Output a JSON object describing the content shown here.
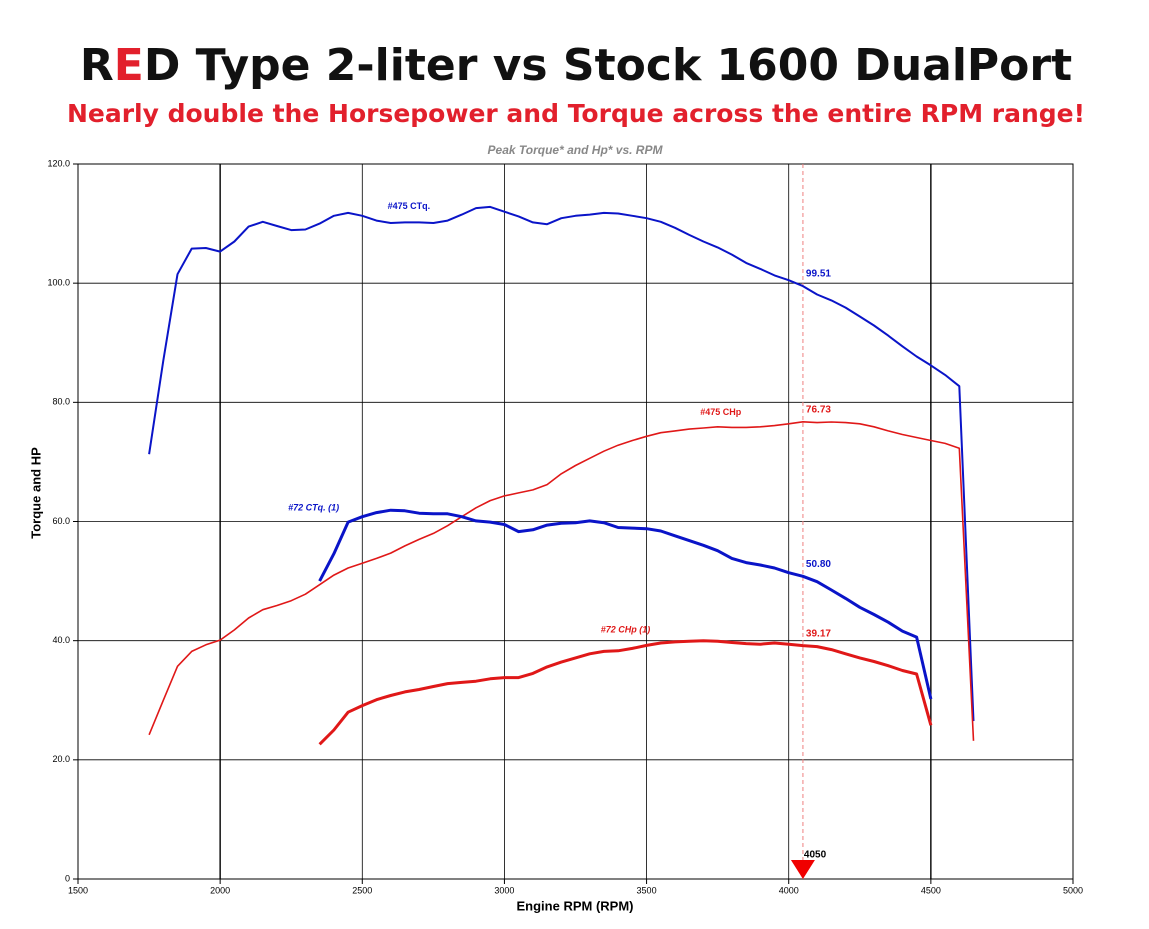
{
  "chart_data": {
    "type": "line",
    "title": "RED Type 2-liter vs Stock 1600 DualPort",
    "subtitle": "Nearly double the Horsepower and Torque across the entire RPM range!",
    "plot_title": "Peak Torque* and Hp* vs. RPM",
    "x_label": "Engine RPM (RPM)",
    "y_label": "Torque and HP",
    "xlim": [
      1500,
      5000
    ],
    "ylim": [
      0,
      120
    ],
    "xticks": [
      1500,
      2000,
      2500,
      3000,
      3500,
      4000,
      4500,
      5000
    ],
    "yticks": [
      0,
      {
        "value": 20,
        "label": "20.0"
      },
      {
        "value": 40,
        "label": "40.0"
      },
      {
        "value": 60,
        "label": "60.0"
      },
      {
        "value": 80,
        "label": "80.0"
      },
      {
        "value": 100,
        "label": "100.0"
      },
      {
        "value": 120,
        "label": "120.0"
      }
    ],
    "grid": true,
    "cursor": {
      "x": 4050
    },
    "series": [
      {
        "name": "#475 CTq.",
        "color": "#0a14c8",
        "x": [
          1750,
          1800,
          1850,
          1900,
          1950,
          2000,
          2050,
          2100,
          2150,
          2200,
          2250,
          2300,
          2350,
          2400,
          2450,
          2500,
          2550,
          2600,
          2650,
          2700,
          2750,
          2800,
          2850,
          2900,
          2950,
          3000,
          3050,
          3100,
          3150,
          3200,
          3250,
          3300,
          3350,
          3400,
          3450,
          3500,
          3550,
          3600,
          3650,
          3700,
          3750,
          3800,
          3850,
          3900,
          3950,
          4000,
          4050,
          4100,
          4150,
          4200,
          4250,
          4300,
          4350,
          4400,
          4450,
          4500,
          4550,
          4600,
          4650
        ],
        "values": [
          71.3,
          87,
          101.5,
          105.8,
          105.9,
          105.3,
          107,
          109.5,
          110.3,
          109.6,
          108.9,
          109,
          110,
          111.3,
          111.8,
          111.3,
          110.5,
          110.1,
          110.2,
          110.2,
          110.1,
          110.5,
          111.5,
          112.6,
          112.8,
          112,
          111.2,
          110.2,
          109.9,
          110.9,
          111.3,
          111.5,
          111.8,
          111.7,
          111.3,
          110.9,
          110.3,
          109.3,
          108.1,
          107,
          106,
          104.8,
          103.4,
          102.4,
          101.3,
          100.5,
          99.51,
          98.1,
          97.1,
          95.9,
          94.4,
          92.9,
          91.2,
          89.4,
          87.7,
          86.2,
          84.6,
          82.7,
          26.5
        ],
        "value_labels": [
          null,
          null,
          null,
          null,
          null,
          null,
          null,
          null,
          null,
          null,
          null,
          null,
          null,
          null,
          null,
          null,
          null,
          null,
          null,
          null,
          null,
          null,
          null,
          null,
          null,
          null,
          null,
          null,
          null,
          null,
          null,
          null,
          null,
          null,
          null,
          null,
          null,
          null,
          null,
          null,
          null,
          null,
          null,
          null,
          null,
          null,
          "99.51",
          null,
          null,
          null,
          null,
          null,
          null,
          null,
          null,
          null,
          null,
          null,
          null
        ]
      },
      {
        "name": "#475 CHp",
        "color": "#e01818",
        "x": [
          1750,
          1800,
          1850,
          1900,
          1950,
          2000,
          2050,
          2100,
          2150,
          2200,
          2250,
          2300,
          2350,
          2400,
          2450,
          2500,
          2550,
          2600,
          2650,
          2700,
          2750,
          2800,
          2850,
          2900,
          2950,
          3000,
          3050,
          3100,
          3150,
          3200,
          3250,
          3300,
          3350,
          3400,
          3450,
          3500,
          3550,
          3600,
          3650,
          3700,
          3750,
          3800,
          3850,
          3900,
          3950,
          4000,
          4050,
          4100,
          4150,
          4200,
          4250,
          4300,
          4350,
          4400,
          4450,
          4500,
          4550,
          4600,
          4650
        ],
        "values": [
          24.2,
          30,
          35.7,
          38.2,
          39.3,
          40.1,
          41.8,
          43.8,
          45.2,
          45.9,
          46.7,
          47.8,
          49.4,
          51,
          52.2,
          53,
          53.8,
          54.7,
          55.9,
          57,
          58,
          59.3,
          60.8,
          62.3,
          63.5,
          64.3,
          64.8,
          65.3,
          66.2,
          68,
          69.4,
          70.6,
          71.8,
          72.8,
          73.6,
          74.3,
          74.9,
          75.2,
          75.5,
          75.7,
          75.9,
          75.8,
          75.8,
          75.9,
          76.1,
          76.4,
          76.73,
          76.6,
          76.7,
          76.6,
          76.4,
          75.9,
          75.2,
          74.6,
          74.1,
          73.6,
          73.1,
          72.3,
          23.2
        ],
        "value_labels": [
          null,
          null,
          null,
          null,
          null,
          null,
          null,
          null,
          null,
          null,
          null,
          null,
          null,
          null,
          null,
          null,
          null,
          null,
          null,
          null,
          null,
          null,
          null,
          null,
          null,
          null,
          null,
          null,
          null,
          null,
          null,
          null,
          null,
          null,
          null,
          null,
          null,
          null,
          null,
          null,
          null,
          null,
          null,
          null,
          null,
          null,
          "76.73",
          null,
          null,
          null,
          null,
          null,
          null,
          null,
          null,
          null,
          null,
          null,
          null
        ]
      },
      {
        "name": "#72 CTq. (1)",
        "color": "#0a14c8",
        "x": [
          2350,
          2400,
          2450,
          2500,
          2550,
          2600,
          2650,
          2700,
          2750,
          2800,
          2850,
          2900,
          2950,
          3000,
          3050,
          3100,
          3150,
          3200,
          3250,
          3300,
          3350,
          3400,
          3450,
          3500,
          3550,
          3600,
          3650,
          3700,
          3750,
          3800,
          3850,
          3900,
          3950,
          4000,
          4050,
          4100,
          4150,
          4200,
          4250,
          4300,
          4350,
          4400,
          4450,
          4500
        ],
        "values": [
          50,
          54.6,
          59.9,
          60.8,
          61.5,
          61.9,
          61.8,
          61.4,
          61.3,
          61.3,
          60.8,
          60.1,
          59.9,
          59.5,
          58.3,
          58.6,
          59.4,
          59.7,
          59.8,
          60.1,
          59.8,
          59,
          58.9,
          58.8,
          58.4,
          57.6,
          56.8,
          56,
          55.1,
          53.8,
          53.1,
          52.7,
          52.2,
          51.4,
          50.8,
          49.9,
          48.5,
          47.1,
          45.6,
          44.4,
          43.1,
          41.6,
          40.6,
          30.2
        ],
        "value_labels": [
          null,
          null,
          null,
          null,
          null,
          null,
          null,
          null,
          null,
          null,
          null,
          null,
          null,
          null,
          null,
          null,
          null,
          null,
          null,
          null,
          null,
          null,
          null,
          null,
          null,
          null,
          null,
          null,
          null,
          null,
          null,
          null,
          null,
          null,
          "50.80",
          null,
          null,
          null,
          null,
          null,
          null,
          null,
          null,
          null
        ]
      },
      {
        "name": "#72 CHp (1)",
        "color": "#e01818",
        "x": [
          2350,
          2400,
          2450,
          2500,
          2550,
          2600,
          2650,
          2700,
          2750,
          2800,
          2850,
          2900,
          2950,
          3000,
          3050,
          3100,
          3150,
          3200,
          3250,
          3300,
          3350,
          3400,
          3450,
          3500,
          3550,
          3600,
          3650,
          3700,
          3750,
          3800,
          3850,
          3900,
          3950,
          4000,
          4050,
          4100,
          4150,
          4200,
          4250,
          4300,
          4350,
          4400,
          4450,
          4500
        ],
        "values": [
          22.6,
          25,
          28,
          29.1,
          30.1,
          30.8,
          31.4,
          31.8,
          32.3,
          32.8,
          33,
          33.2,
          33.6,
          33.8,
          33.8,
          34.5,
          35.6,
          36.4,
          37.1,
          37.8,
          38.2,
          38.3,
          38.7,
          39.2,
          39.6,
          39.8,
          39.9,
          40,
          39.9,
          39.7,
          39.5,
          39.4,
          39.6,
          39.4,
          39.17,
          39,
          38.5,
          37.8,
          37.1,
          36.5,
          35.8,
          35,
          34.4,
          25.8
        ],
        "value_labels": [
          null,
          null,
          null,
          null,
          null,
          null,
          null,
          null,
          null,
          null,
          null,
          null,
          null,
          null,
          null,
          null,
          null,
          null,
          null,
          null,
          null,
          null,
          null,
          null,
          null,
          null,
          null,
          null,
          null,
          null,
          null,
          null,
          null,
          null,
          "39.17",
          null,
          null,
          null,
          null,
          null,
          null,
          null,
          null,
          null
        ]
      }
    ]
  }
}
